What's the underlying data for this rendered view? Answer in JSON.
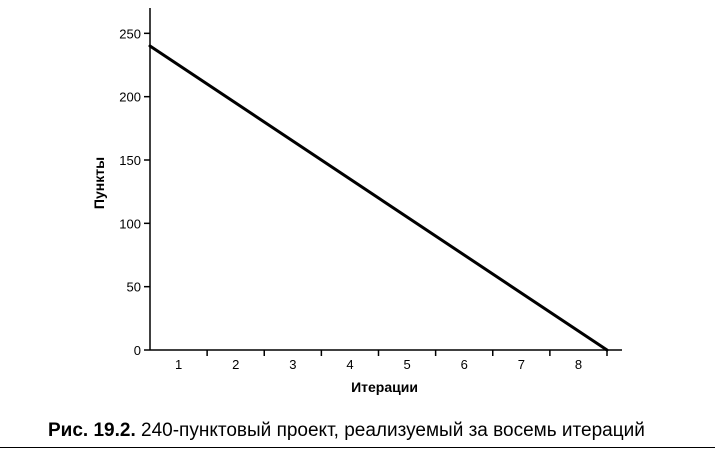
{
  "chart_data": {
    "type": "line",
    "title": "",
    "xlabel": "Итерации",
    "ylabel": "Пункты",
    "x_categories": [
      "1",
      "2",
      "3",
      "4",
      "5",
      "6",
      "7",
      "8"
    ],
    "y_ticks": [
      "0",
      "50",
      "100",
      "150",
      "200",
      "250"
    ],
    "xlim": [
      0,
      8
    ],
    "ylim": [
      0,
      270
    ],
    "grid": false,
    "legend": "none",
    "series": [
      {
        "x": [
          0,
          8
        ],
        "y": [
          240,
          0
        ],
        "color": "#000000"
      }
    ]
  },
  "caption": {
    "label": "Рис. 19.2.",
    "text": "240-пунктовый проект, реализуемый за восемь итераций"
  }
}
